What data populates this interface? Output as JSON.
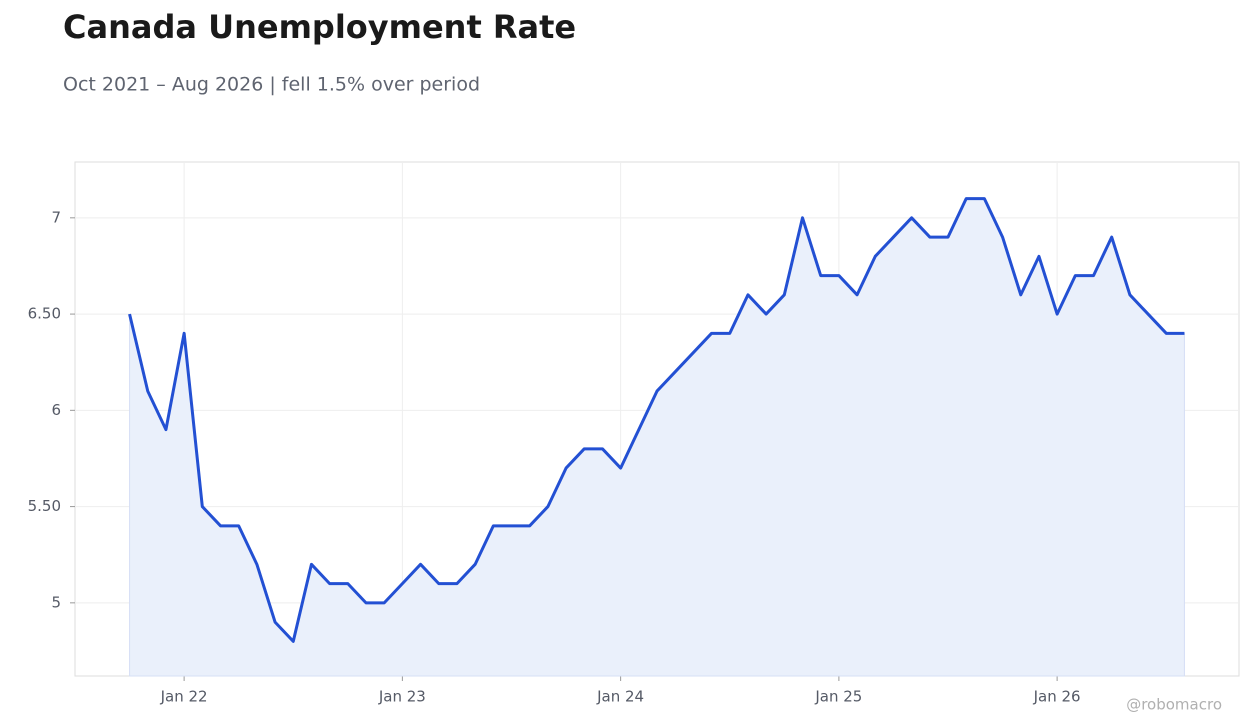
{
  "chart_data": {
    "type": "line",
    "title": "Canada Unemployment Rate",
    "subtitle": "Oct 2021 – Aug 2026 | fell 1.5% over period",
    "watermark": "@robomacro",
    "x": [
      "2021-10",
      "2021-11",
      "2021-12",
      "2022-01",
      "2022-02",
      "2022-03",
      "2022-04",
      "2022-05",
      "2022-06",
      "2022-07",
      "2022-08",
      "2022-09",
      "2022-10",
      "2022-11",
      "2022-12",
      "2023-01",
      "2023-02",
      "2023-03",
      "2023-04",
      "2023-05",
      "2023-06",
      "2023-07",
      "2023-08",
      "2023-09",
      "2023-10",
      "2023-11",
      "2023-12",
      "2024-01",
      "2024-02",
      "2024-03",
      "2024-04",
      "2024-05",
      "2024-06",
      "2024-07",
      "2024-08",
      "2024-09",
      "2024-10",
      "2024-11",
      "2024-12",
      "2025-01",
      "2025-02",
      "2025-03",
      "2025-04",
      "2025-05",
      "2025-06",
      "2025-07",
      "2025-08",
      "2025-09",
      "2025-10",
      "2025-11",
      "2025-12",
      "2026-01",
      "2026-02",
      "2026-03",
      "2026-04",
      "2026-05",
      "2026-06",
      "2026-07",
      "2026-08"
    ],
    "values": [
      6.5,
      6.1,
      5.9,
      6.4,
      5.5,
      5.4,
      5.4,
      5.2,
      4.9,
      4.8,
      5.2,
      5.1,
      5.1,
      5.0,
      5.0,
      5.1,
      5.2,
      5.1,
      5.1,
      5.2,
      5.4,
      5.4,
      5.4,
      5.5,
      5.7,
      5.8,
      5.8,
      5.7,
      5.9,
      6.1,
      6.2,
      6.3,
      6.4,
      6.4,
      6.6,
      6.5,
      6.6,
      7.0,
      6.7,
      6.7,
      6.6,
      6.8,
      6.9,
      7.0,
      6.9,
      6.9,
      7.1,
      7.1,
      6.9,
      6.6,
      6.8,
      6.5,
      6.7,
      6.7,
      6.9,
      6.6,
      6.5,
      6.4,
      6.4
    ],
    "color": "#2350d3",
    "area_color": "#eaf0fb",
    "xlim": [
      "2021-07",
      "2026-11"
    ],
    "xticks": [
      {
        "value": "2022-01",
        "label": "Jan 22"
      },
      {
        "value": "2023-01",
        "label": "Jan 23"
      },
      {
        "value": "2024-01",
        "label": "Jan 24"
      },
      {
        "value": "2025-01",
        "label": "Jan 25"
      },
      {
        "value": "2026-01",
        "label": "Jan 26"
      }
    ],
    "ylim": [
      4.62,
      7.29
    ],
    "yticks": [
      5,
      {
        "value": 5.5,
        "label": "5.50"
      },
      6,
      {
        "value": 6.5,
        "label": "6.50"
      },
      7
    ],
    "grid": true
  }
}
